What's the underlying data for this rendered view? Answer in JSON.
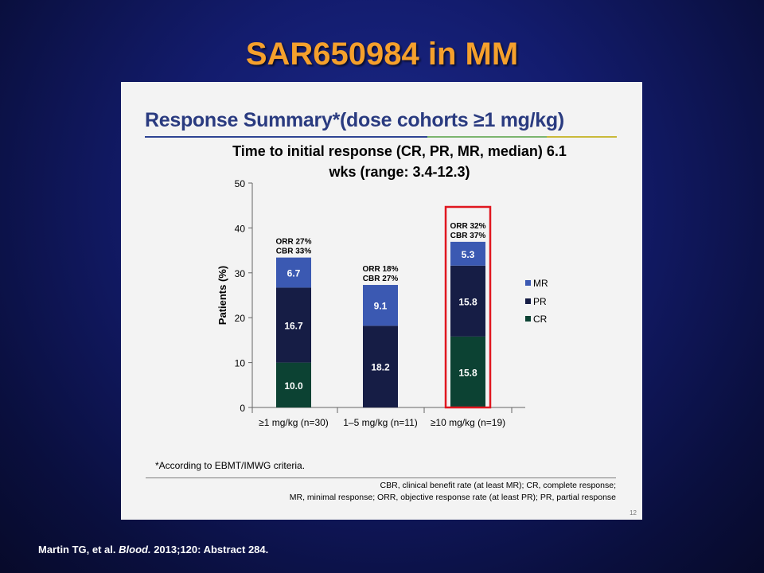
{
  "slide": {
    "title": "SAR650984 in MM",
    "citation": {
      "authors": "Martin TG, et al.",
      "journal": "Blood.",
      "details": "2013;120: Abstract 284."
    }
  },
  "panel": {
    "header": "Response Summary*(dose cohorts ≥1 mg/kg)",
    "header_rule_colors": [
      "#2e4493",
      "#7bb56e",
      "#c9ba3a"
    ],
    "note_line1": "Time to initial response (CR, PR, MR, median) 6.1",
    "note_line2": "wks (range: 3.4-12.3)",
    "footnote": "*According to EBMT/IMWG criteria.",
    "abbreviations_line1": "CBR, clinical benefit rate (at least MR); CR, complete response;",
    "abbreviations_line2": "MR, minimal response; ORR, objective response rate (at least PR); PR, partial response",
    "page_number": "12",
    "highlight_color": "#e0161f"
  },
  "chart_data": {
    "type": "bar",
    "stacked": true,
    "categories": [
      "≥1 mg/kg (n=30)",
      "1–5 mg/kg (n=11)",
      "≥10 mg/kg (n=19)"
    ],
    "series": [
      {
        "name": "CR",
        "color": "#0c4233",
        "values": [
          10.0,
          0,
          15.8
        ]
      },
      {
        "name": "PR",
        "color": "#161d45",
        "values": [
          16.7,
          18.2,
          15.8
        ]
      },
      {
        "name": "MR",
        "color": "#3b59b2",
        "values": [
          6.7,
          9.1,
          5.3
        ]
      }
    ],
    "data_labels": [
      [
        "10.0",
        "16.7",
        "6.7"
      ],
      [
        "",
        "18.2",
        "9.1"
      ],
      [
        "15.8",
        "15.8",
        "5.3"
      ]
    ],
    "annotations": [
      {
        "orr": "ORR 27%",
        "cbr": "CBR 33%"
      },
      {
        "orr": "ORR 18%",
        "cbr": "CBR 27%"
      },
      {
        "orr": "ORR 32%",
        "cbr": "CBR 37%"
      }
    ],
    "highlighted_category": 2,
    "ylabel": "Patients (%)",
    "ylim": [
      0,
      50
    ],
    "yticks": [
      "0",
      "10",
      "20",
      "30",
      "40",
      "50"
    ],
    "legend_order": [
      "MR",
      "PR",
      "CR"
    ],
    "legend_position": "right",
    "grid": false
  }
}
